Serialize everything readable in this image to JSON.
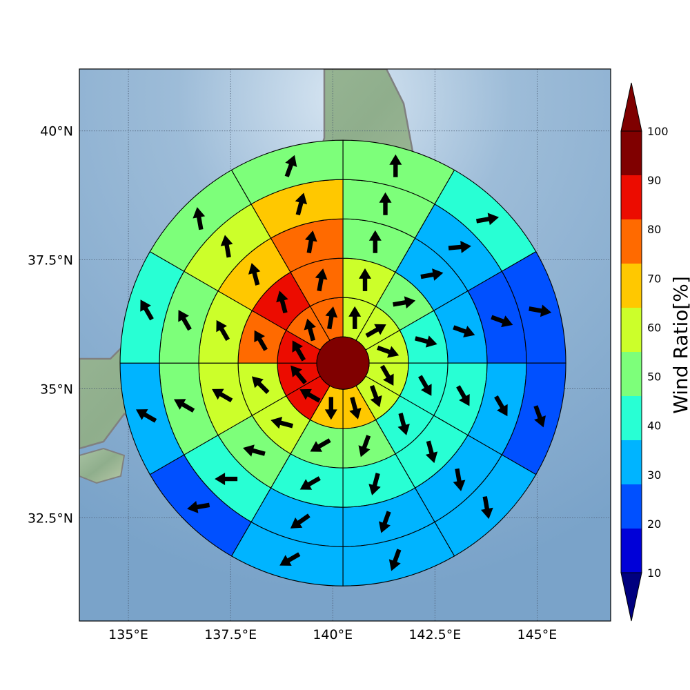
{
  "chart_data": {
    "type": "polar-sector-map",
    "projection": "lat-lon",
    "xlim": [
      133.8,
      146.8
    ],
    "ylim": [
      30.5,
      41.2
    ],
    "x_ticks": [
      "135°E",
      "137.5°E",
      "140°E",
      "142.5°E",
      "145°E"
    ],
    "x_tick_values": [
      135,
      137.5,
      140,
      142.5,
      145
    ],
    "y_ticks": [
      "32.5°N",
      "35°N",
      "37.5°N",
      "40°N"
    ],
    "y_tick_values": [
      32.5,
      35,
      37.5,
      40
    ],
    "grid": true,
    "center": {
      "lon": 140.25,
      "lat": 35.5
    },
    "center_value": 100,
    "rings": 5,
    "sectors_per_ring": 12,
    "sector_order": "clockwise from north",
    "ring_values": [
      [
        60,
        60,
        60,
        60,
        60,
        70,
        70,
        90,
        90,
        90,
        80,
        80
      ],
      [
        60,
        50,
        40,
        40,
        40,
        50,
        50,
        60,
        60,
        80,
        90,
        80
      ],
      [
        50,
        30,
        30,
        40,
        40,
        40,
        40,
        50,
        60,
        60,
        70,
        80
      ],
      [
        50,
        30,
        20,
        30,
        30,
        30,
        30,
        40,
        50,
        50,
        60,
        70
      ],
      [
        50,
        40,
        20,
        20,
        30,
        30,
        30,
        20,
        30,
        40,
        50,
        50
      ]
    ],
    "wind_direction_deg": [
      [
        0,
        60,
        110,
        150,
        160,
        165,
        180,
        300,
        320,
        330,
        345,
        10
      ],
      [
        0,
        80,
        105,
        150,
        165,
        200,
        240,
        285,
        315,
        330,
        345,
        10
      ],
      [
        0,
        80,
        110,
        150,
        165,
        195,
        240,
        285,
        300,
        330,
        345,
        10
      ],
      [
        0,
        85,
        110,
        150,
        170,
        200,
        235,
        270,
        300,
        330,
        350,
        15
      ],
      [
        0,
        80,
        100,
        160,
        170,
        200,
        240,
        260,
        300,
        330,
        350,
        20
      ]
    ],
    "colorbar": {
      "label": "Wind Ratio[%]",
      "ticks": [
        "10",
        "20",
        "30",
        "40",
        "50",
        "60",
        "70",
        "80",
        "90",
        "100"
      ],
      "levels": [
        10,
        20,
        30,
        40,
        50,
        60,
        70,
        80,
        90,
        100
      ],
      "colors": [
        "#0000d8",
        "#0050ff",
        "#00b4ff",
        "#28ffd4",
        "#7dff7a",
        "#ccff2a",
        "#ffc800",
        "#ff6a00",
        "#ec0c00",
        "#800000"
      ],
      "under_color": "#00007f",
      "over_color": "#7f0000",
      "extend": "both"
    }
  }
}
